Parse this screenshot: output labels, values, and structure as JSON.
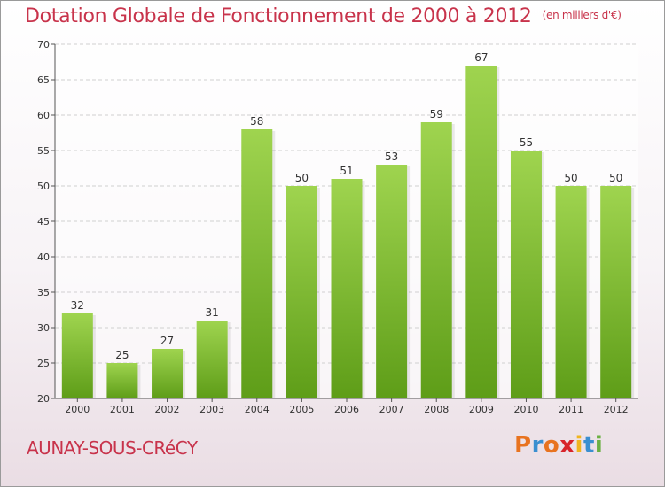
{
  "header": {
    "title": "Dotation Globale de Fonctionnement de 2000 à 2012",
    "subtitle": "(en milliers d'€)"
  },
  "footer": {
    "place": "AUNAY-SOUS-CRéCY",
    "logo_letters": [
      "P",
      "r",
      "o",
      "x",
      "i",
      "t",
      "i"
    ],
    "logo_colors": [
      "#e8731f",
      "#3a8fd0",
      "#e8731f",
      "#d8232a",
      "#f0b51f",
      "#3a8fd0",
      "#6bb043"
    ]
  },
  "chart_data": {
    "type": "bar",
    "categories": [
      "2000",
      "2001",
      "2002",
      "2003",
      "2004",
      "2005",
      "2006",
      "2007",
      "2008",
      "2009",
      "2010",
      "2011",
      "2012"
    ],
    "values": [
      32,
      25,
      27,
      31,
      58,
      50,
      51,
      53,
      59,
      67,
      55,
      50,
      50
    ],
    "title": "Dotation Globale de Fonctionnement de 2000 à 2012",
    "subtitle": "(en milliers d'€)",
    "ylim": [
      20,
      70
    ],
    "yticks": [
      20,
      25,
      30,
      35,
      40,
      45,
      50,
      55,
      60,
      65,
      70
    ],
    "grid": true,
    "bar_color_top": "#9fd44f",
    "bar_color_bottom": "#5e9d18"
  }
}
